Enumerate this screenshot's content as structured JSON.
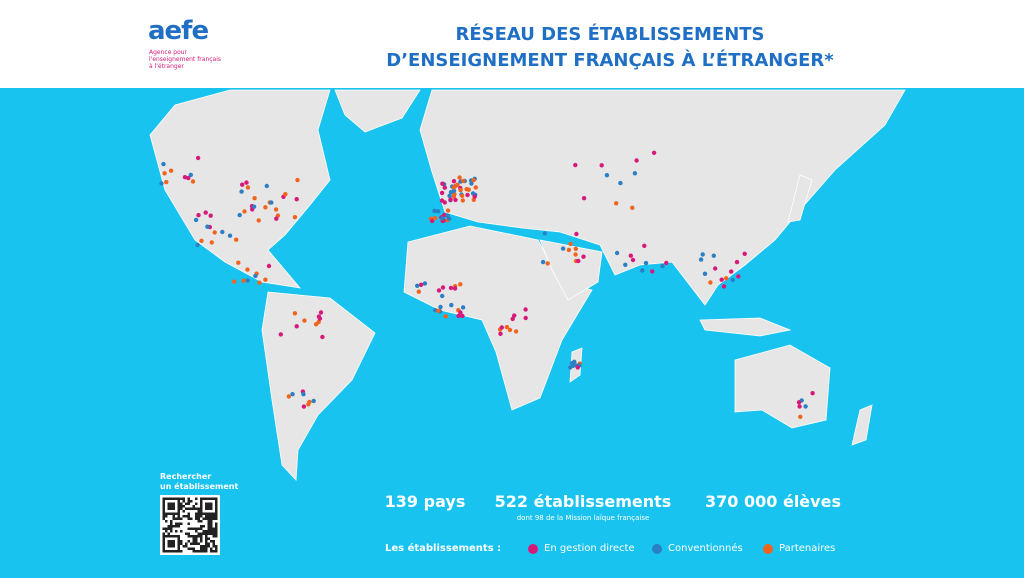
{
  "logo": {
    "name": "aefe",
    "tagline": [
      "Agence pour",
      "l'enseignement français",
      "à l'étranger"
    ]
  },
  "title": [
    "RÉSEAU DES ÉTABLISSEMENTS",
    "D’ENSEIGNEMENT FRANÇAIS À L’ÉTRANGER*"
  ],
  "search": [
    "Rechercher",
    "un établissement"
  ],
  "stats": [
    {
      "value": "139 pays"
    },
    {
      "value": "522 établissements",
      "note": "dont 98 de la Mission laïque française"
    },
    {
      "value": "370 000 élèves"
    }
  ],
  "legend": {
    "title": "Les établissements :",
    "items": [
      {
        "label": "En gestion directe",
        "color": "#d6197a"
      },
      {
        "label": "Conventionnés",
        "color": "#2b7fc4"
      },
      {
        "label": "Partenaires",
        "color": "#f0641e"
      }
    ]
  }
}
